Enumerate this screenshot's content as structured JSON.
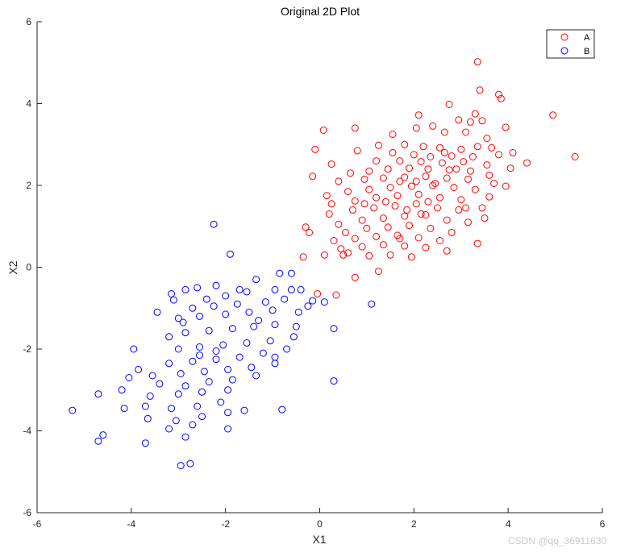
{
  "watermark": "CSDN @qq_36911630",
  "chart_data": {
    "type": "scatter",
    "title": "Original 2D Plot",
    "xlabel": "X1",
    "ylabel": "X2",
    "xlim": [
      -6,
      6
    ],
    "ylim": [
      -6,
      6
    ],
    "xticks": [
      -6,
      -4,
      -2,
      0,
      2,
      4,
      6
    ],
    "yticks": [
      -6,
      -4,
      -2,
      0,
      2,
      4,
      6
    ],
    "grid": false,
    "legend_position": "top-right",
    "marker": "open-circle",
    "series": [
      {
        "name": "A",
        "color": "#ff0000",
        "points": [
          [
            3.35,
            5.02
          ],
          [
            3.4,
            4.33
          ],
          [
            3.8,
            4.22
          ],
          [
            3.85,
            4.12
          ],
          [
            2.75,
            3.98
          ],
          [
            3.3,
            3.75
          ],
          [
            4.95,
            3.72
          ],
          [
            2.1,
            3.72
          ],
          [
            2.95,
            3.6
          ],
          [
            3.2,
            3.55
          ],
          [
            3.45,
            3.58
          ],
          [
            3.95,
            3.42
          ],
          [
            0.08,
            3.35
          ],
          [
            0.75,
            3.4
          ],
          [
            1.55,
            3.25
          ],
          [
            2.05,
            3.4
          ],
          [
            2.4,
            3.45
          ],
          [
            2.65,
            3.3
          ],
          [
            3.1,
            3.3
          ],
          [
            3.55,
            3.15
          ],
          [
            1.25,
            2.98
          ],
          [
            1.8,
            3.0
          ],
          [
            2.2,
            2.95
          ],
          [
            2.55,
            2.92
          ],
          [
            3.0,
            2.88
          ],
          [
            3.65,
            2.92
          ],
          [
            -0.1,
            2.88
          ],
          [
            0.8,
            2.85
          ],
          [
            1.55,
            2.8
          ],
          [
            2.0,
            2.75
          ],
          [
            2.35,
            2.7
          ],
          [
            2.8,
            2.72
          ],
          [
            3.25,
            2.7
          ],
          [
            3.8,
            2.75
          ],
          [
            4.1,
            2.8
          ],
          [
            5.42,
            2.7
          ],
          [
            0.25,
            2.52
          ],
          [
            1.2,
            2.6
          ],
          [
            1.7,
            2.6
          ],
          [
            2.15,
            2.58
          ],
          [
            2.6,
            2.55
          ],
          [
            3.05,
            2.58
          ],
          [
            3.55,
            2.5
          ],
          [
            4.4,
            2.55
          ],
          [
            4.05,
            2.42
          ],
          [
            -0.15,
            2.22
          ],
          [
            0.65,
            2.3
          ],
          [
            1.05,
            2.35
          ],
          [
            1.45,
            2.4
          ],
          [
            1.9,
            2.42
          ],
          [
            2.3,
            2.4
          ],
          [
            2.75,
            2.38
          ],
          [
            3.2,
            2.35
          ],
          [
            3.6,
            2.25
          ],
          [
            0.4,
            2.1
          ],
          [
            0.95,
            2.15
          ],
          [
            1.35,
            2.18
          ],
          [
            1.8,
            2.2
          ],
          [
            2.25,
            2.22
          ],
          [
            2.7,
            2.18
          ],
          [
            3.15,
            2.15
          ],
          [
            3.7,
            2.05
          ],
          [
            3.95,
            1.98
          ],
          [
            0.15,
            1.75
          ],
          [
            0.6,
            1.85
          ],
          [
            1.05,
            1.9
          ],
          [
            1.5,
            1.95
          ],
          [
            1.95,
            1.98
          ],
          [
            2.4,
            2.0
          ],
          [
            2.85,
            1.95
          ],
          [
            3.3,
            1.9
          ],
          [
            3.6,
            1.72
          ],
          [
            0.25,
            1.55
          ],
          [
            0.75,
            1.62
          ],
          [
            1.2,
            1.7
          ],
          [
            1.65,
            1.75
          ],
          [
            2.1,
            1.78
          ],
          [
            2.55,
            1.7
          ],
          [
            3.0,
            1.65
          ],
          [
            3.45,
            1.45
          ],
          [
            0.2,
            1.3
          ],
          [
            0.7,
            1.4
          ],
          [
            1.15,
            1.45
          ],
          [
            1.6,
            1.5
          ],
          [
            2.05,
            1.55
          ],
          [
            2.5,
            1.45
          ],
          [
            2.95,
            1.4
          ],
          [
            3.5,
            1.2
          ],
          [
            0.4,
            1.05
          ],
          [
            0.9,
            1.15
          ],
          [
            1.35,
            1.2
          ],
          [
            1.8,
            1.25
          ],
          [
            2.25,
            1.28
          ],
          [
            2.7,
            1.15
          ],
          [
            3.15,
            1.1
          ],
          [
            -0.3,
            0.98
          ],
          [
            0.55,
            0.85
          ],
          [
            1.0,
            0.95
          ],
          [
            1.45,
            0.98
          ],
          [
            1.9,
            1.02
          ],
          [
            2.35,
            0.95
          ],
          [
            2.8,
            0.85
          ],
          [
            -0.22,
            0.85
          ],
          [
            0.3,
            0.65
          ],
          [
            0.75,
            0.7
          ],
          [
            1.2,
            0.75
          ],
          [
            1.65,
            0.78
          ],
          [
            2.1,
            0.72
          ],
          [
            2.55,
            0.65
          ],
          [
            3.35,
            0.58
          ],
          [
            0.45,
            0.45
          ],
          [
            0.9,
            0.5
          ],
          [
            1.35,
            0.55
          ],
          [
            1.8,
            0.52
          ],
          [
            2.25,
            0.48
          ],
          [
            2.7,
            0.4
          ],
          [
            0.5,
            0.3
          ],
          [
            1.05,
            0.28
          ],
          [
            1.5,
            0.3
          ],
          [
            1.95,
            0.25
          ],
          [
            -0.35,
            0.25
          ],
          [
            0.1,
            0.3
          ],
          [
            1.25,
            -0.1
          ],
          [
            0.75,
            -0.25
          ],
          [
            -0.05,
            -0.65
          ],
          [
            0.35,
            -0.68
          ],
          [
            0.6,
            0.35
          ],
          [
            1.7,
            0.7
          ],
          [
            2.15,
            1.3
          ],
          [
            2.45,
            2.05
          ],
          [
            1.7,
            2.1
          ],
          [
            1.4,
            1.6
          ],
          [
            2.9,
            2.4
          ],
          [
            3.35,
            2.95
          ],
          [
            2.05,
            2.1
          ],
          [
            0.95,
            1.55
          ],
          [
            1.85,
            1.4
          ],
          [
            2.3,
            1.6
          ],
          [
            2.65,
            2.8
          ],
          [
            3.1,
            1.45
          ]
        ]
      },
      {
        "name": "B",
        "color": "#0000ff",
        "points": [
          [
            -2.25,
            1.05
          ],
          [
            -1.9,
            0.32
          ],
          [
            -0.85,
            -0.15
          ],
          [
            -0.6,
            -0.15
          ],
          [
            -1.35,
            -0.3
          ],
          [
            -2.2,
            -0.45
          ],
          [
            -2.6,
            -0.5
          ],
          [
            -2.85,
            -0.55
          ],
          [
            -3.15,
            -0.65
          ],
          [
            -0.95,
            -0.55
          ],
          [
            -0.6,
            -0.55
          ],
          [
            -1.55,
            -0.6
          ],
          [
            -2.0,
            -0.7
          ],
          [
            -2.4,
            -0.78
          ],
          [
            -3.1,
            -0.8
          ],
          [
            -0.75,
            -0.78
          ],
          [
            -1.15,
            -0.85
          ],
          [
            -1.75,
            -0.9
          ],
          [
            -2.25,
            -0.95
          ],
          [
            -2.7,
            -1.0
          ],
          [
            -3.45,
            -1.1
          ],
          [
            -0.25,
            -0.95
          ],
          [
            -0.45,
            -1.1
          ],
          [
            -1.0,
            -1.05
          ],
          [
            -1.5,
            -1.1
          ],
          [
            -2.0,
            -1.15
          ],
          [
            -2.55,
            -1.2
          ],
          [
            -3.0,
            -1.25
          ],
          [
            -0.15,
            -0.82
          ],
          [
            0.1,
            -0.85
          ],
          [
            -0.5,
            -1.45
          ],
          [
            -0.95,
            -1.4
          ],
          [
            -1.4,
            -1.45
          ],
          [
            -1.85,
            -1.5
          ],
          [
            -2.35,
            -1.55
          ],
          [
            -2.85,
            -1.6
          ],
          [
            -3.2,
            -1.7
          ],
          [
            0.3,
            -1.5
          ],
          [
            -0.55,
            -1.7
          ],
          [
            -1.05,
            -1.8
          ],
          [
            -1.55,
            -1.85
          ],
          [
            -2.05,
            -1.9
          ],
          [
            -2.55,
            -1.95
          ],
          [
            -3.0,
            -2.0
          ],
          [
            -3.95,
            -2.0
          ],
          [
            -0.7,
            -2.0
          ],
          [
            -1.2,
            -2.1
          ],
          [
            -1.7,
            -2.2
          ],
          [
            -2.2,
            -2.25
          ],
          [
            -2.7,
            -2.3
          ],
          [
            -3.2,
            -2.35
          ],
          [
            -0.95,
            -2.35
          ],
          [
            -1.45,
            -2.45
          ],
          [
            -1.95,
            -2.5
          ],
          [
            -2.45,
            -2.55
          ],
          [
            -2.95,
            -2.6
          ],
          [
            -3.55,
            -2.65
          ],
          [
            -3.85,
            -2.5
          ],
          [
            -1.35,
            -2.65
          ],
          [
            -1.85,
            -2.75
          ],
          [
            -2.35,
            -2.8
          ],
          [
            -2.85,
            -2.9
          ],
          [
            -3.4,
            -2.85
          ],
          [
            -4.05,
            -2.7
          ],
          [
            0.3,
            -2.78
          ],
          [
            -1.95,
            -3.0
          ],
          [
            -2.5,
            -3.05
          ],
          [
            -3.0,
            -3.1
          ],
          [
            -3.6,
            -3.15
          ],
          [
            -4.2,
            -3.0
          ],
          [
            -4.7,
            -3.1
          ],
          [
            -2.1,
            -3.3
          ],
          [
            -2.6,
            -3.4
          ],
          [
            -3.15,
            -3.45
          ],
          [
            -3.7,
            -3.4
          ],
          [
            -4.15,
            -3.45
          ],
          [
            -5.25,
            -3.5
          ],
          [
            -1.95,
            -3.55
          ],
          [
            -2.5,
            -3.65
          ],
          [
            -3.05,
            -3.75
          ],
          [
            -3.65,
            -3.7
          ],
          [
            -0.8,
            -3.48
          ],
          [
            -2.7,
            -3.85
          ],
          [
            -3.2,
            -3.95
          ],
          [
            -1.95,
            -3.95
          ],
          [
            -4.6,
            -4.1
          ],
          [
            -4.7,
            -4.25
          ],
          [
            -2.85,
            -4.15
          ],
          [
            -3.7,
            -4.3
          ],
          [
            -2.95,
            -4.85
          ],
          [
            -2.75,
            -4.8
          ],
          [
            -1.6,
            -3.5
          ],
          [
            -2.2,
            -2.05
          ],
          [
            -1.3,
            -1.3
          ],
          [
            -2.9,
            -1.35
          ],
          [
            -1.7,
            -0.55
          ],
          [
            -0.4,
            -0.55
          ],
          [
            1.1,
            -0.9
          ],
          [
            -0.95,
            -2.2
          ],
          [
            -2.55,
            -2.15
          ]
        ]
      }
    ]
  }
}
